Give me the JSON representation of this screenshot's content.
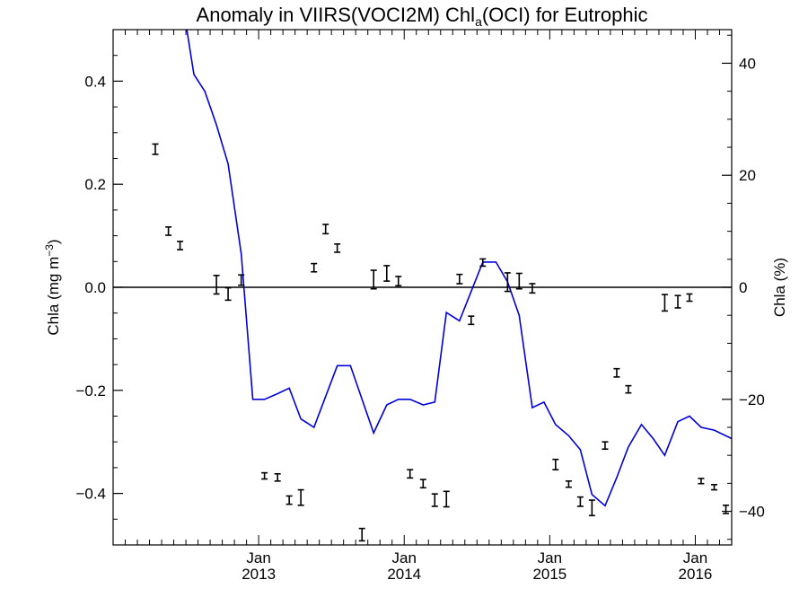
{
  "chart_data": {
    "type": "scatter",
    "title": {
      "main": "Anomaly in VIIRS(VOCI2M) Chl",
      "sub": "a",
      "rest": "(OCI) for Eutrophic"
    },
    "ylabel_left": {
      "main": "Chla (mg m",
      "sup": "−3",
      "end": ")"
    },
    "ylabel_right": "Chla (%)",
    "xlim": [
      2012.0,
      2016.25
    ],
    "ylim_left": [
      -0.5,
      0.5
    ],
    "ylim_right": [
      -46,
      46
    ],
    "left_ticks": [
      "0.4",
      "0.2",
      "0.0",
      "−0.2",
      "−0.4"
    ],
    "left_tick_values": [
      0.4,
      0.2,
      0.0,
      -0.2,
      -0.4
    ],
    "right_ticks": [
      "40",
      "20",
      "0",
      "−20",
      "−40"
    ],
    "right_tick_values": [
      40,
      20,
      0,
      -20,
      -40
    ],
    "x_ticks": [
      {
        "x": 2013.0,
        "month": "Jan",
        "year": "2013"
      },
      {
        "x": 2014.0,
        "month": "Jan",
        "year": "2014"
      },
      {
        "x": 2015.0,
        "month": "Jan",
        "year": "2015"
      },
      {
        "x": 2016.0,
        "month": "Jan",
        "year": "2016"
      }
    ],
    "series": [
      {
        "type": "errorbar",
        "color": "#000000",
        "points": [
          {
            "x": 2012.29,
            "y": 0.268,
            "err": 0.01
          },
          {
            "x": 2012.38,
            "y": 0.109,
            "err": 0.008
          },
          {
            "x": 2012.46,
            "y": 0.081,
            "err": 0.008
          },
          {
            "x": 2012.71,
            "y": 0.005,
            "err": 0.018
          },
          {
            "x": 2012.79,
            "y": -0.013,
            "err": 0.012
          },
          {
            "x": 2012.88,
            "y": 0.014,
            "err": 0.01
          },
          {
            "x": 2013.04,
            "y": -0.366,
            "err": 0.006
          },
          {
            "x": 2013.13,
            "y": -0.369,
            "err": 0.007
          },
          {
            "x": 2013.21,
            "y": -0.413,
            "err": 0.008
          },
          {
            "x": 2013.29,
            "y": -0.408,
            "err": 0.015
          },
          {
            "x": 2013.38,
            "y": 0.038,
            "err": 0.008
          },
          {
            "x": 2013.46,
            "y": 0.113,
            "err": 0.009
          },
          {
            "x": 2013.54,
            "y": 0.076,
            "err": 0.008
          },
          {
            "x": 2013.71,
            "y": -0.48,
            "err": 0.012
          },
          {
            "x": 2013.79,
            "y": 0.015,
            "err": 0.018
          },
          {
            "x": 2013.88,
            "y": 0.027,
            "err": 0.015
          },
          {
            "x": 2013.96,
            "y": 0.012,
            "err": 0.009
          },
          {
            "x": 2014.04,
            "y": -0.362,
            "err": 0.008
          },
          {
            "x": 2014.13,
            "y": -0.381,
            "err": 0.008
          },
          {
            "x": 2014.21,
            "y": -0.413,
            "err": 0.012
          },
          {
            "x": 2014.29,
            "y": -0.411,
            "err": 0.015
          },
          {
            "x": 2014.38,
            "y": 0.016,
            "err": 0.009
          },
          {
            "x": 2014.46,
            "y": -0.064,
            "err": 0.008
          },
          {
            "x": 2014.54,
            "y": 0.048,
            "err": 0.007
          },
          {
            "x": 2014.71,
            "y": 0.01,
            "err": 0.018
          },
          {
            "x": 2014.79,
            "y": 0.012,
            "err": 0.015
          },
          {
            "x": 2014.88,
            "y": -0.002,
            "err": 0.009
          },
          {
            "x": 2015.04,
            "y": -0.344,
            "err": 0.01
          },
          {
            "x": 2015.13,
            "y": -0.382,
            "err": 0.006
          },
          {
            "x": 2015.21,
            "y": -0.416,
            "err": 0.009
          },
          {
            "x": 2015.29,
            "y": -0.428,
            "err": 0.015
          },
          {
            "x": 2015.38,
            "y": -0.307,
            "err": 0.007
          },
          {
            "x": 2015.46,
            "y": -0.166,
            "err": 0.008
          },
          {
            "x": 2015.54,
            "y": -0.198,
            "err": 0.007
          },
          {
            "x": 2015.79,
            "y": -0.03,
            "err": 0.016
          },
          {
            "x": 2015.88,
            "y": -0.028,
            "err": 0.012
          },
          {
            "x": 2015.96,
            "y": -0.02,
            "err": 0.007
          },
          {
            "x": 2016.04,
            "y": -0.376,
            "err": 0.005
          },
          {
            "x": 2016.13,
            "y": -0.388,
            "err": 0.005
          },
          {
            "x": 2016.21,
            "y": -0.431,
            "err": 0.008
          }
        ]
      },
      {
        "type": "line",
        "color": "#0000dd",
        "axis": "right",
        "points": [
          {
            "x": 2012.5,
            "y": 47.0
          },
          {
            "x": 2012.555,
            "y": 38.0
          },
          {
            "x": 2012.63,
            "y": 35.0
          },
          {
            "x": 2012.71,
            "y": 29.0
          },
          {
            "x": 2012.79,
            "y": 22.0
          },
          {
            "x": 2012.88,
            "y": 6.0
          },
          {
            "x": 2012.96,
            "y": -20.0
          },
          {
            "x": 2013.04,
            "y": -20.0
          },
          {
            "x": 2013.13,
            "y": -19.0
          },
          {
            "x": 2013.21,
            "y": -18.0
          },
          {
            "x": 2013.29,
            "y": -23.5
          },
          {
            "x": 2013.38,
            "y": -25.0
          },
          {
            "x": 2013.54,
            "y": -14.0
          },
          {
            "x": 2013.63,
            "y": -14.0
          },
          {
            "x": 2013.79,
            "y": -26.0
          },
          {
            "x": 2013.88,
            "y": -21.0
          },
          {
            "x": 2013.96,
            "y": -20.0
          },
          {
            "x": 2014.04,
            "y": -20.0
          },
          {
            "x": 2014.13,
            "y": -21.0
          },
          {
            "x": 2014.21,
            "y": -20.5
          },
          {
            "x": 2014.29,
            "y": -4.5
          },
          {
            "x": 2014.38,
            "y": -6.0
          },
          {
            "x": 2014.54,
            "y": 4.5
          },
          {
            "x": 2014.63,
            "y": 4.5
          },
          {
            "x": 2014.71,
            "y": 1.0
          },
          {
            "x": 2014.79,
            "y": -5.0
          },
          {
            "x": 2014.88,
            "y": -21.5
          },
          {
            "x": 2014.96,
            "y": -20.5
          },
          {
            "x": 2015.04,
            "y": -24.5
          },
          {
            "x": 2015.13,
            "y": -26.5
          },
          {
            "x": 2015.21,
            "y": -29.0
          },
          {
            "x": 2015.29,
            "y": -37.0
          },
          {
            "x": 2015.38,
            "y": -39.0
          },
          {
            "x": 2015.46,
            "y": -34.0
          },
          {
            "x": 2015.54,
            "y": -28.5
          },
          {
            "x": 2015.63,
            "y": -24.5
          },
          {
            "x": 2015.71,
            "y": -27.0
          },
          {
            "x": 2015.79,
            "y": -30.0
          },
          {
            "x": 2015.88,
            "y": -24.0
          },
          {
            "x": 2015.96,
            "y": -23.0
          },
          {
            "x": 2016.04,
            "y": -25.0
          },
          {
            "x": 2016.13,
            "y": -25.5
          },
          {
            "x": 2016.25,
            "y": -27.0
          }
        ]
      }
    ],
    "zero_line": true,
    "grid": false,
    "legend": "none"
  }
}
